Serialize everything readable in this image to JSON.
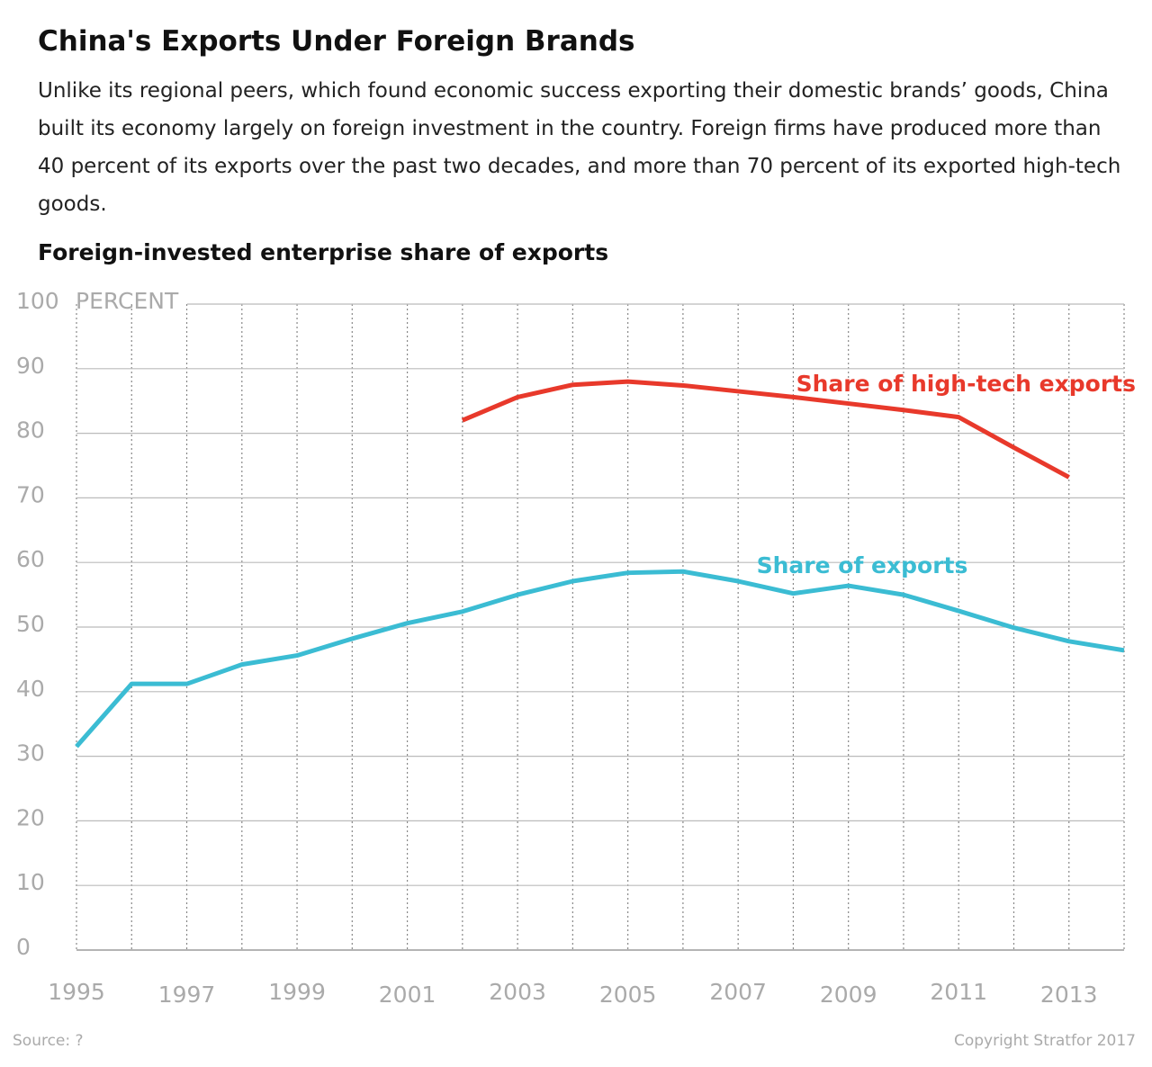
{
  "chart_data": {
    "type": "line",
    "title": "China's Exports Under Foreign Brands",
    "subtitle": "Unlike its regional peers, which found economic success exporting their domestic brands’ goods, China built its economy largely on foreign investment in the country. Foreign firms have produced more than 40 percent of its exports over the past two decades, and more than 70 percent of its exported high-tech goods.",
    "ylabel": "Foreign-invested enterprise share of exports",
    "y_unit": "PERCENT",
    "source": "Source: ?",
    "copyright": "Copyright Stratfor 2017",
    "x": [
      1995,
      1996,
      1997,
      1998,
      1999,
      2000,
      2001,
      2002,
      2003,
      2004,
      2005,
      2006,
      2007,
      2008,
      2009,
      2010,
      2011,
      2012,
      2013,
      2014
    ],
    "series": [
      {
        "name": "Share of high-tech exports",
        "color": "#e8392b",
        "values": [
          null,
          null,
          null,
          null,
          null,
          null,
          null,
          82.0,
          85.6,
          87.5,
          88.0,
          87.4,
          86.5,
          85.6,
          84.6,
          83.6,
          82.5,
          77.8,
          73.2,
          null
        ]
      },
      {
        "name": "Share of exports",
        "color": "#3bbcd3",
        "values": [
          31.5,
          41.2,
          41.2,
          44.2,
          45.6,
          48.2,
          50.6,
          52.4,
          55.0,
          57.1,
          58.4,
          58.6,
          57.1,
          55.2,
          56.4,
          55.0,
          52.5,
          49.9,
          47.8,
          46.4
        ]
      }
    ],
    "xlim": [
      1995,
      2014
    ],
    "xticks": [
      1995,
      1997,
      1999,
      2001,
      2003,
      2005,
      2007,
      2009,
      2011,
      2013
    ],
    "ylim": [
      0,
      100
    ],
    "yticks": [
      0,
      10,
      20,
      30,
      40,
      50,
      60,
      70,
      80,
      90,
      100
    ],
    "grid": true
  }
}
